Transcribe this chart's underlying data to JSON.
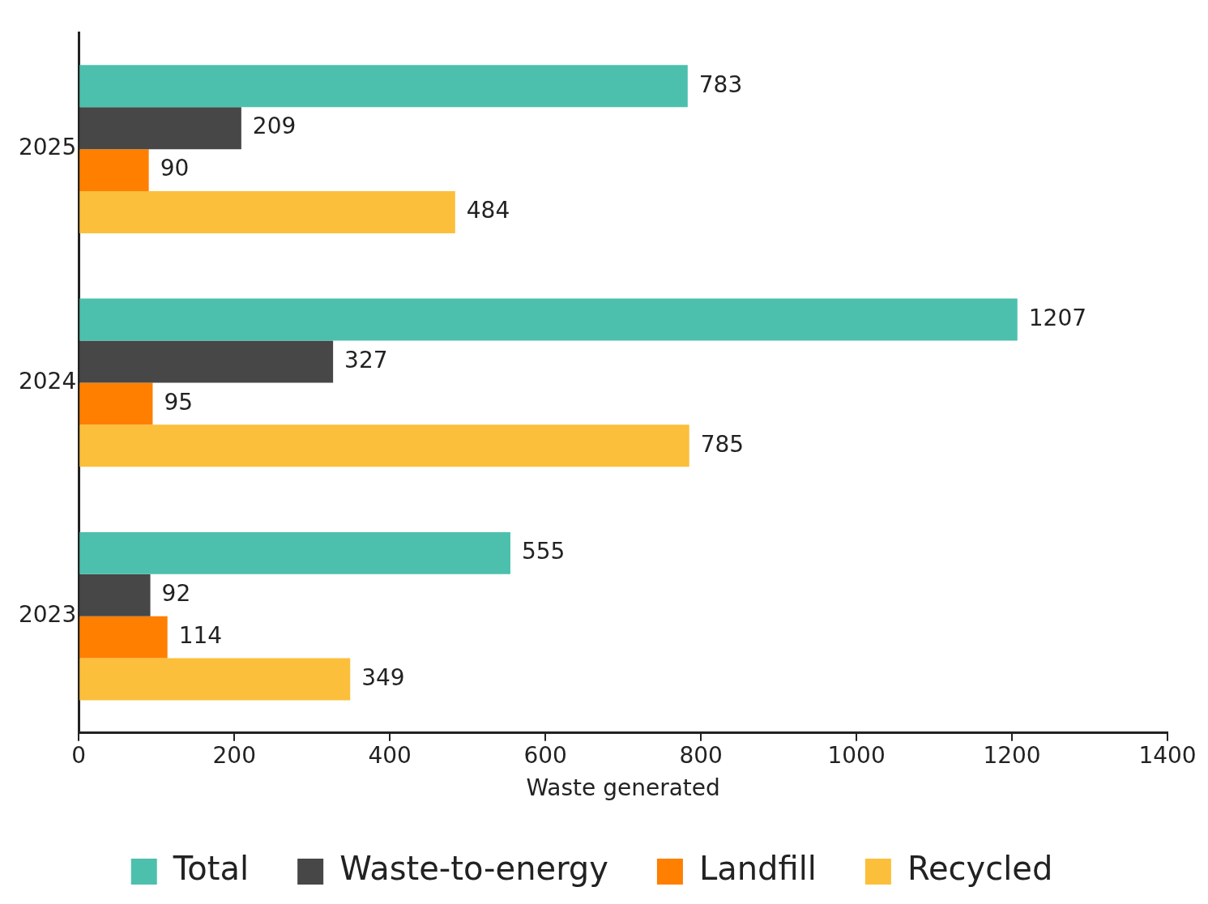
{
  "chart_data": {
    "type": "bar",
    "orientation": "horizontal",
    "xlabel": "Waste generated",
    "categories": [
      "2025",
      "2024",
      "2023"
    ],
    "series": [
      {
        "name": "Total",
        "color": "#4cc0ad",
        "values": [
          783,
          1207,
          555
        ]
      },
      {
        "name": "Waste-to-energy",
        "color": "#474747",
        "values": [
          209,
          327,
          92
        ]
      },
      {
        "name": "Landfill",
        "color": "#ff7f00",
        "values": [
          90,
          95,
          114
        ]
      },
      {
        "name": "Recycled",
        "color": "#fbbf3b",
        "values": [
          484,
          785,
          349
        ]
      }
    ],
    "xlim": [
      0,
      1400
    ],
    "xticks": [
      0,
      200,
      400,
      600,
      800,
      1000,
      1200,
      1400
    ],
    "grid": false,
    "legend": "bottom",
    "data_labels": true
  }
}
